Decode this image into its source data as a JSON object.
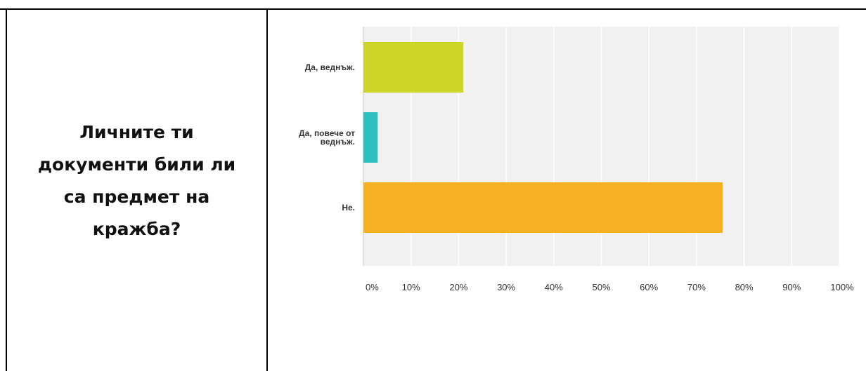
{
  "question": {
    "text": "Личните ти документи били ли са предмет на кражба?"
  },
  "chart_data": {
    "type": "bar",
    "orientation": "horizontal",
    "categories": [
      [
        "Да, веднъж."
      ],
      [
        "Да, повече от",
        "веднъж."
      ],
      [
        "Не."
      ]
    ],
    "values": [
      21.0,
      3.0,
      75.5
    ],
    "colors": [
      "#cdd629",
      "#2cbfbd",
      "#f6b022"
    ],
    "xlim": [
      0,
      100
    ],
    "x_ticks": [
      "0%",
      "10%",
      "20%",
      "30%",
      "40%",
      "50%",
      "60%",
      "70%",
      "80%",
      "90%",
      "100%"
    ],
    "plot_background": "#f1f1f1",
    "grid": true
  }
}
